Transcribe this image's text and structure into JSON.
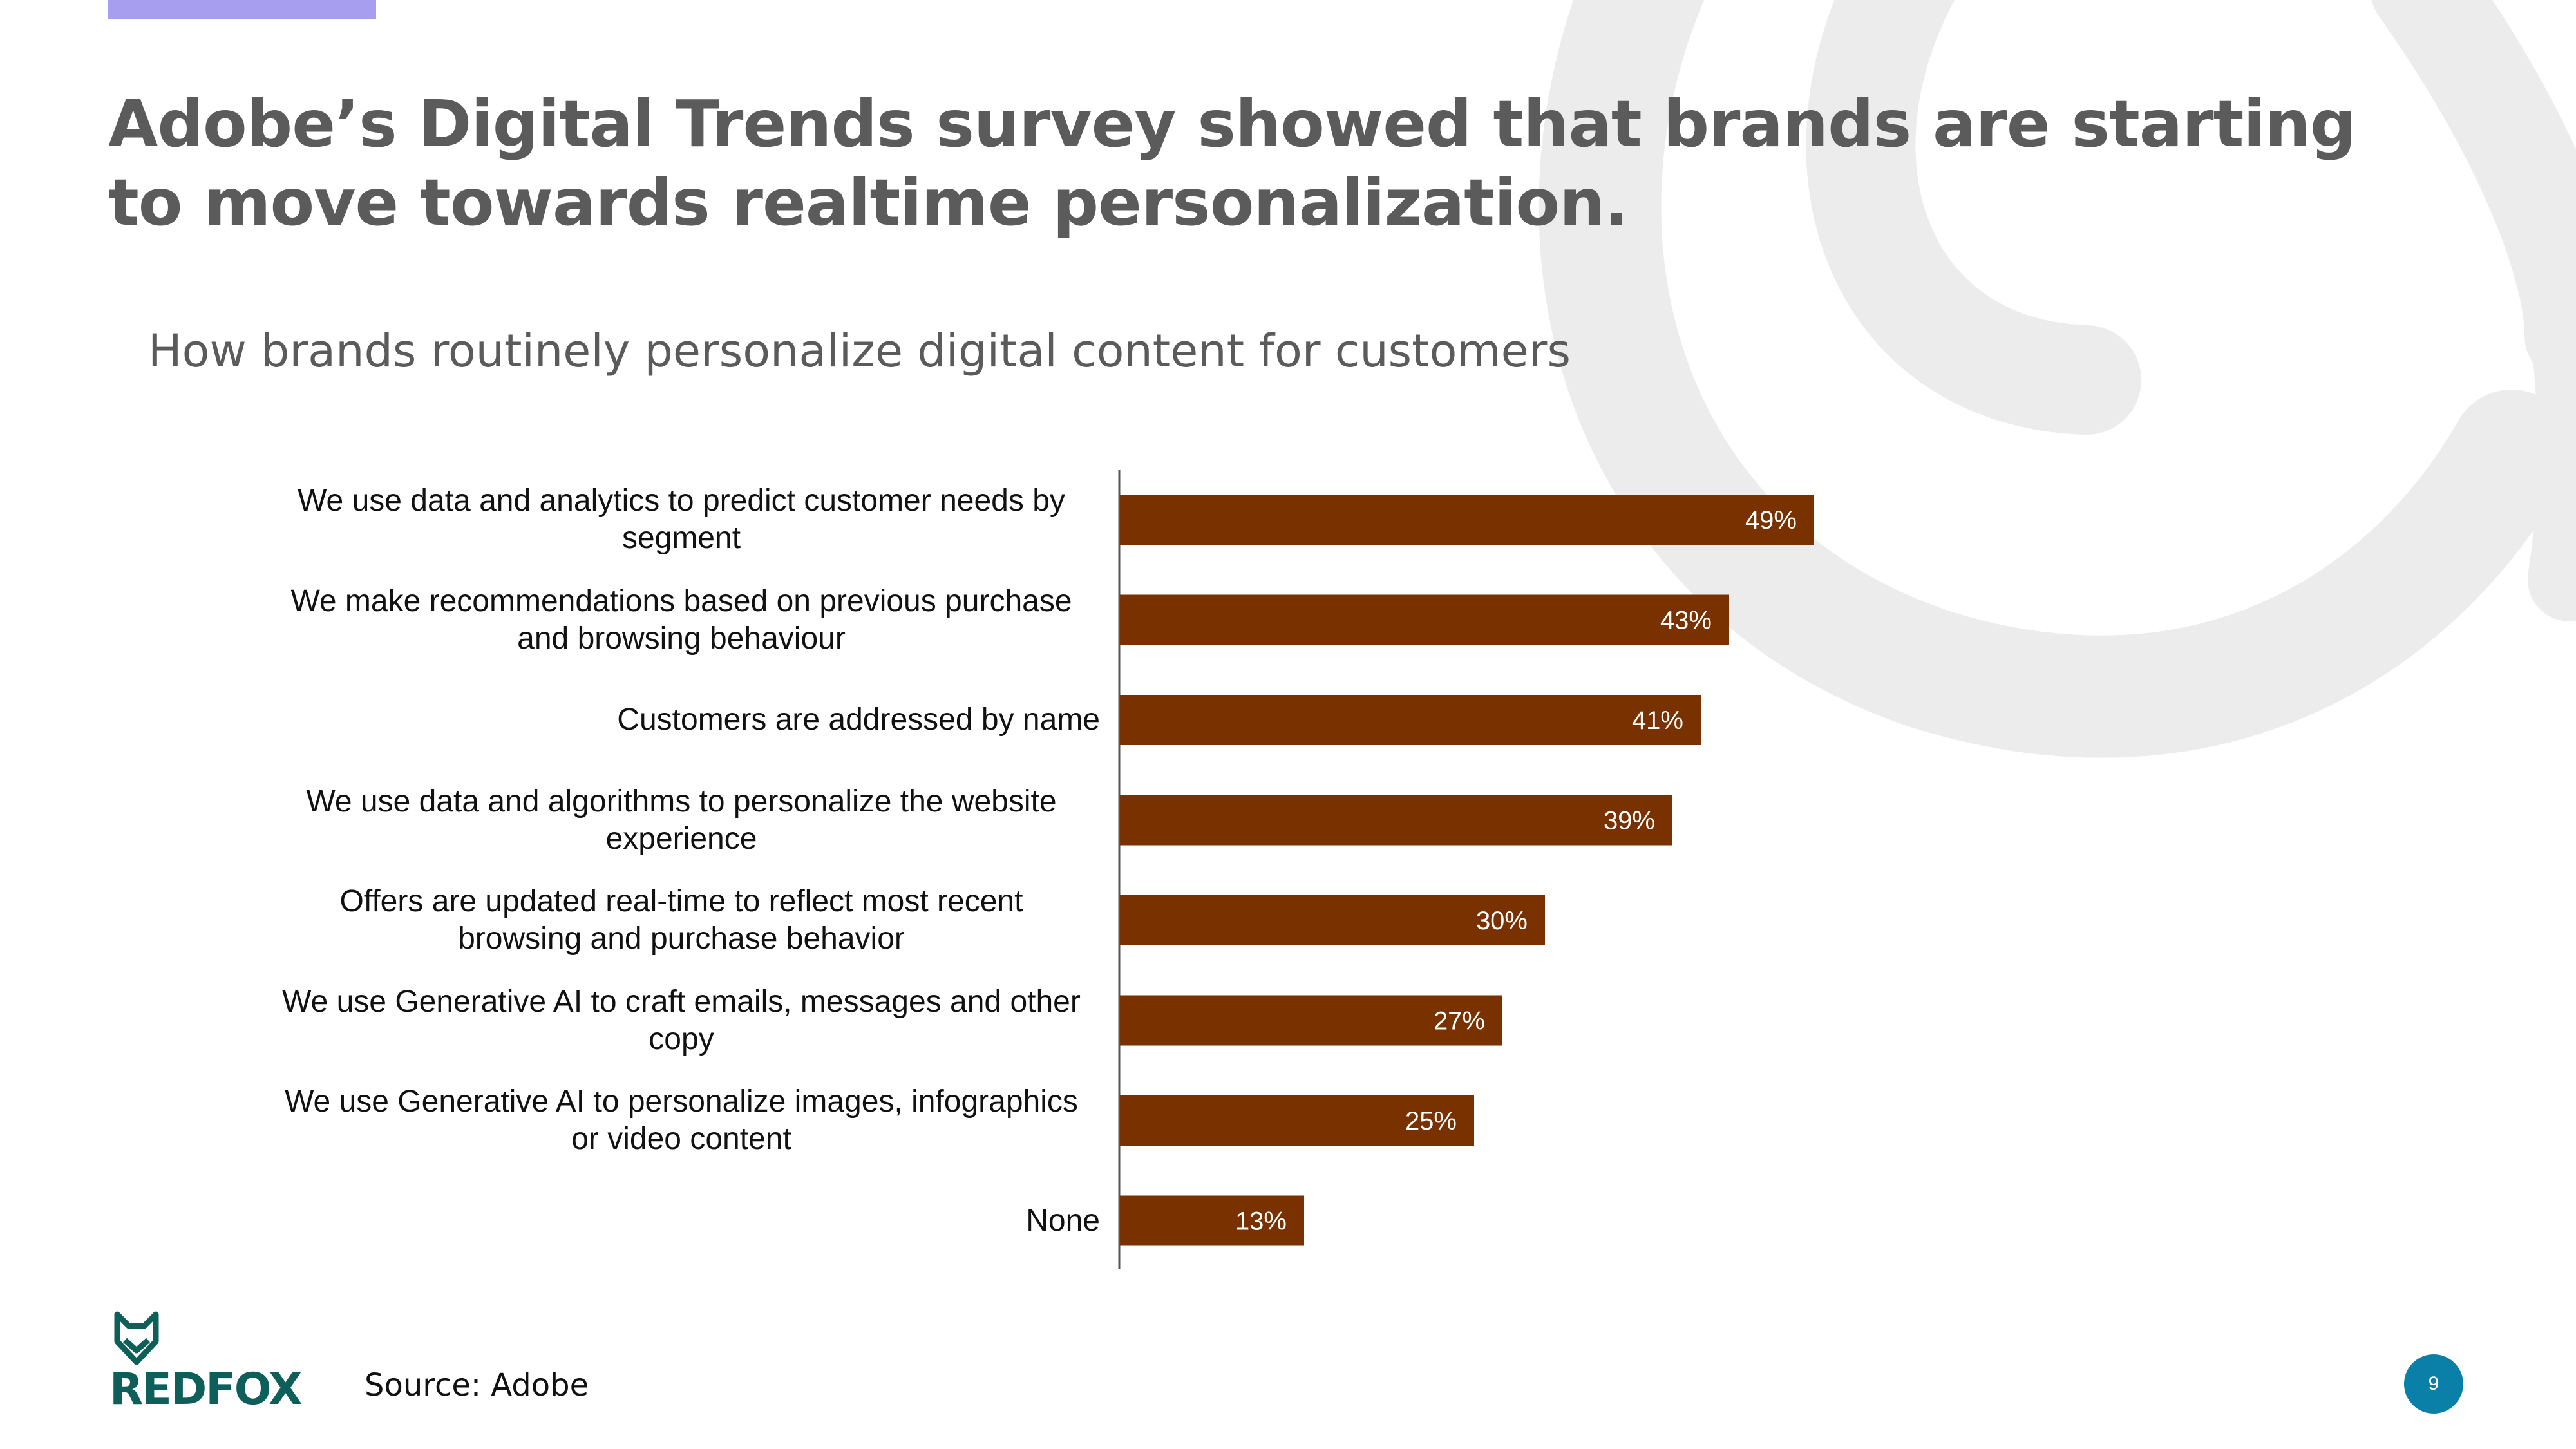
{
  "slide": {
    "title": "Adobe’s Digital Trends survey showed that brands are starting to move towards realtime personalization.",
    "source": "Source: Adobe",
    "page_number": "9",
    "logo_text": "REDFOX"
  },
  "colors": {
    "bar": "#7a3100",
    "title": "#5b5b5b",
    "accent_bar": "#a89ef0",
    "decor_ring": "#ececec",
    "brand": "#0e5f5a",
    "badge": "#0a7fa8"
  },
  "icons": [
    "fox-logo-icon"
  ],
  "chart_data": {
    "type": "bar",
    "orientation": "horizontal",
    "title": "How brands routinely personalize digital content for customers",
    "categories": [
      "We use data and analytics to predict customer needs by segment",
      "We make recommendations based on previous purchase and browsing behaviour",
      "Customers are addressed by name",
      "We use data and algorithms to personalize the website experience",
      "Offers are updated real-time to reflect most recent browsing and purchase behavior",
      "We use Generative AI to craft emails, messages and other copy",
      "We use Generative AI to personalize images, infographics or video content",
      "None"
    ],
    "category_lines": [
      [
        "We use data and analytics to predict customer needs by",
        "segment"
      ],
      [
        "We make recommendations based on previous purchase",
        "and browsing behaviour"
      ],
      [
        "Customers are addressed by name"
      ],
      [
        "We use data and algorithms to personalize the website",
        "experience"
      ],
      [
        "Offers are updated real-time to reflect most recent",
        "browsing and purchase behavior"
      ],
      [
        "We use Generative AI to craft emails, messages and other",
        "copy"
      ],
      [
        "We use Generative AI to personalize images, infographics",
        "or video content"
      ],
      [
        "None"
      ]
    ],
    "values": [
      49,
      43,
      41,
      39,
      30,
      27,
      25,
      13
    ],
    "data_labels": [
      "49%",
      "43%",
      "41%",
      "39%",
      "30%",
      "27%",
      "25%",
      "13%"
    ],
    "unit": "%",
    "xlabel": "",
    "ylabel": "",
    "legend": "none",
    "grid": false
  }
}
